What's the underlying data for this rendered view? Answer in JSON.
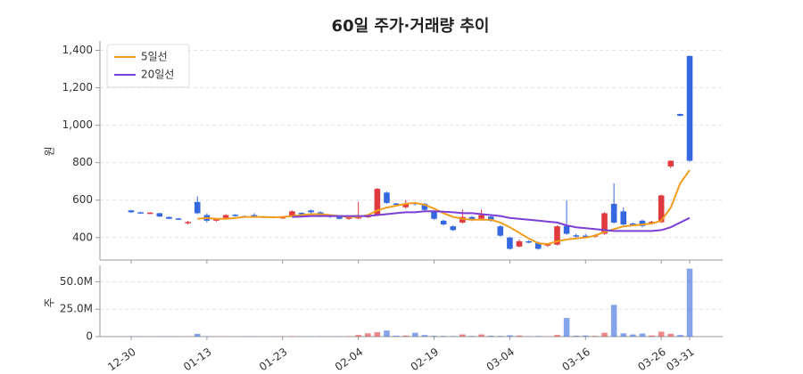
{
  "chart_data": {
    "type": "candlestick",
    "title": "60일 주가·거래량 추이",
    "ylabel": "원",
    "categories": [
      "12-30",
      null,
      null,
      null,
      null,
      null,
      null,
      null,
      "01-13",
      null,
      null,
      null,
      null,
      null,
      null,
      null,
      "01-23",
      null,
      null,
      null,
      null,
      null,
      null,
      null,
      "02-04",
      null,
      null,
      null,
      null,
      null,
      null,
      null,
      "02-19",
      null,
      null,
      null,
      null,
      null,
      null,
      null,
      "03-04",
      null,
      null,
      null,
      null,
      null,
      null,
      null,
      "03-16",
      null,
      null,
      null,
      null,
      null,
      null,
      null,
      "03-26",
      null,
      null,
      "03-31"
    ],
    "open": [
      545,
      535,
      528,
      530,
      510,
      502,
      478,
      590,
      520,
      490,
      505,
      522,
      515,
      520,
      512,
      512,
      502,
      515,
      532,
      545,
      535,
      520,
      512,
      500,
      502,
      508,
      520,
      640,
      582,
      562,
      585,
      580,
      540,
      490,
      460,
      480,
      510,
      500,
      512,
      460,
      400,
      352,
      380,
      372,
      358,
      362,
      462,
      412,
      410,
      405,
      420,
      580,
      540,
      475,
      490,
      478,
      482,
      780,
      1060,
      1370
    ],
    "high": [
      548,
      538,
      536,
      532,
      512,
      505,
      490,
      620,
      530,
      505,
      525,
      525,
      518,
      530,
      515,
      515,
      515,
      545,
      535,
      550,
      540,
      525,
      515,
      512,
      590,
      520,
      665,
      645,
      585,
      600,
      590,
      585,
      545,
      495,
      465,
      550,
      515,
      550,
      515,
      465,
      405,
      390,
      385,
      378,
      370,
      465,
      600,
      420,
      420,
      418,
      535,
      690,
      560,
      480,
      495,
      490,
      630,
      812,
      1062,
      1372
    ],
    "low": [
      532,
      530,
      526,
      510,
      498,
      495,
      470,
      525,
      480,
      485,
      500,
      512,
      505,
      510,
      505,
      505,
      500,
      512,
      525,
      530,
      510,
      505,
      497,
      495,
      498,
      505,
      515,
      580,
      572,
      555,
      572,
      545,
      495,
      465,
      435,
      475,
      488,
      495,
      485,
      405,
      335,
      348,
      370,
      335,
      350,
      358,
      415,
      400,
      400,
      400,
      415,
      475,
      465,
      460,
      455,
      470,
      478,
      770,
      1048,
      805
    ],
    "close": [
      535,
      532,
      533,
      512,
      500,
      497,
      483,
      530,
      490,
      500,
      520,
      515,
      508,
      515,
      508,
      508,
      512,
      540,
      528,
      535,
      512,
      510,
      500,
      508,
      512,
      516,
      660,
      585,
      575,
      580,
      578,
      548,
      500,
      470,
      440,
      510,
      492,
      520,
      490,
      410,
      340,
      380,
      375,
      340,
      364,
      460,
      420,
      405,
      406,
      412,
      530,
      480,
      470,
      468,
      462,
      484,
      625,
      810,
      1050,
      810
    ],
    "up_color": "#e0393e",
    "down_color": "#3568e0",
    "ylim": [
      280,
      1450
    ],
    "yticks": [
      400,
      600,
      800,
      {
        "value": 1000,
        "label": "1,000"
      },
      {
        "value": 1200,
        "label": "1,200"
      },
      {
        "value": 1400,
        "label": "1,400"
      }
    ],
    "grid": true,
    "legend": "upper left",
    "series": [
      {
        "name": "5일선",
        "color": "#f29d1e",
        "values": [
          null,
          null,
          null,
          null,
          null,
          null,
          null,
          500,
          505,
          500,
          500,
          505,
          510,
          510,
          510,
          508,
          510,
          515,
          520,
          525,
          525,
          520,
          515,
          510,
          510,
          520,
          545,
          560,
          570,
          580,
          585,
          575,
          555,
          530,
          510,
          500,
          495,
          495,
          495,
          480,
          455,
          425,
          395,
          370,
          365,
          380,
          390,
          395,
          400,
          410,
          430,
          445,
          460,
          465,
          470,
          475,
          490,
          560,
          690,
          760
        ]
      },
      {
        "name": "20일선",
        "color": "#7b3fd6",
        "values": [
          null,
          null,
          null,
          null,
          null,
          null,
          null,
          null,
          null,
          null,
          null,
          null,
          null,
          null,
          null,
          null,
          null,
          510,
          512,
          515,
          515,
          515,
          515,
          515,
          515,
          515,
          520,
          525,
          530,
          535,
          535,
          540,
          540,
          538,
          535,
          530,
          530,
          525,
          520,
          515,
          505,
          500,
          495,
          490,
          485,
          480,
          465,
          455,
          450,
          445,
          440,
          435,
          435,
          435,
          435,
          435,
          440,
          455,
          480,
          505
        ]
      }
    ],
    "volume": {
      "ylabel": "주",
      "values": [
        200000,
        200000,
        200000,
        300000,
        300000,
        200000,
        300000,
        2500000,
        400000,
        300000,
        300000,
        200000,
        200000,
        200000,
        200000,
        200000,
        200000,
        400000,
        200000,
        300000,
        300000,
        200000,
        200000,
        300000,
        1500000,
        3000000,
        4000000,
        5500000,
        800000,
        900000,
        3500000,
        1500000,
        700000,
        600000,
        500000,
        2000000,
        600000,
        2000000,
        800000,
        600000,
        1200000,
        1000000,
        300000,
        500000,
        300000,
        1500000,
        17000000,
        800000,
        1000000,
        600000,
        3500000,
        29000000,
        3000000,
        2000000,
        2800000,
        1000000,
        4500000,
        2500000,
        1500000,
        62000000
      ],
      "ylim": [
        0,
        65000000
      ],
      "yticks": [
        0,
        {
          "value": 25000000,
          "label": "25.0M"
        },
        {
          "value": 50000000,
          "label": "50.0M"
        }
      ]
    }
  }
}
